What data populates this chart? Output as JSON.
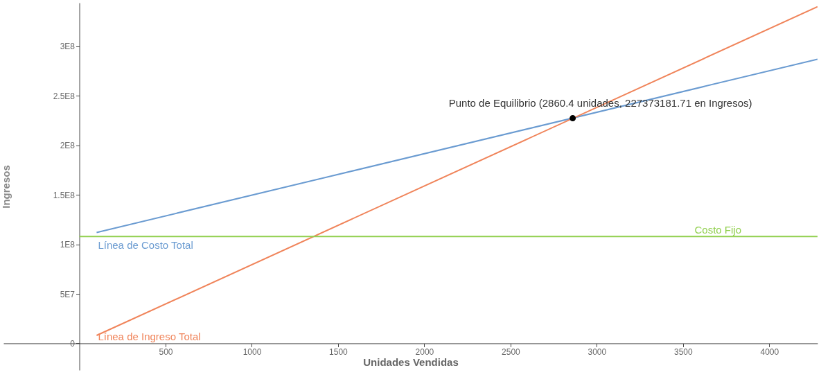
{
  "chart_data": {
    "type": "line",
    "xlabel": "Unidades Vendidas",
    "ylabel": "Ingresos",
    "series": [
      {
        "name": "Línea de Costo Total",
        "color": "#6a9bd1",
        "x": [
          100,
          4280
        ],
        "values": [
          112000000,
          287000000
        ]
      },
      {
        "name": "Línea de Ingreso Total",
        "color": "#f0845a",
        "x": [
          100,
          4280
        ],
        "values": [
          8000000,
          340000000
        ]
      },
      {
        "name": "Costo Fijo",
        "color": "#92d050",
        "x": [
          0,
          4280
        ],
        "values": [
          108000000,
          108000000
        ]
      },
      {
        "type": "scatter",
        "color": "#000000",
        "marker": "circle",
        "x": [
          2860.4
        ],
        "values": [
          227400000
        ]
      }
    ],
    "annotations": [
      {
        "text": "Punto de Equilibrio (2860.4 unidades, 227373181.71 en Ingresos)",
        "x": 2860.4,
        "y": 227400000
      }
    ],
    "xlim": [
      -440,
      4280
    ],
    "ylim": [
      -27000000,
      344000000
    ],
    "xticks": [
      {
        "value": 500,
        "label": "500"
      },
      {
        "value": 1000,
        "label": "1000"
      },
      {
        "value": 1500,
        "label": "1500"
      },
      {
        "value": 2000,
        "label": "2000"
      },
      {
        "value": 2500,
        "label": "2500"
      },
      {
        "value": 3000,
        "label": "3000"
      },
      {
        "value": 3500,
        "label": "3500"
      },
      {
        "value": 4000,
        "label": "4000"
      }
    ],
    "yticks": [
      {
        "value": 0,
        "label": "0"
      },
      {
        "value": 50000000,
        "label": "5E7"
      },
      {
        "value": 100000000,
        "label": "1E8"
      },
      {
        "value": 150000000,
        "label": "1.5E8"
      },
      {
        "value": 200000000,
        "label": "2E8"
      },
      {
        "value": 250000000,
        "label": "2.5E8"
      },
      {
        "value": 300000000,
        "label": "3E8"
      }
    ],
    "grid": false,
    "marker": "none",
    "line_style": "solid"
  }
}
